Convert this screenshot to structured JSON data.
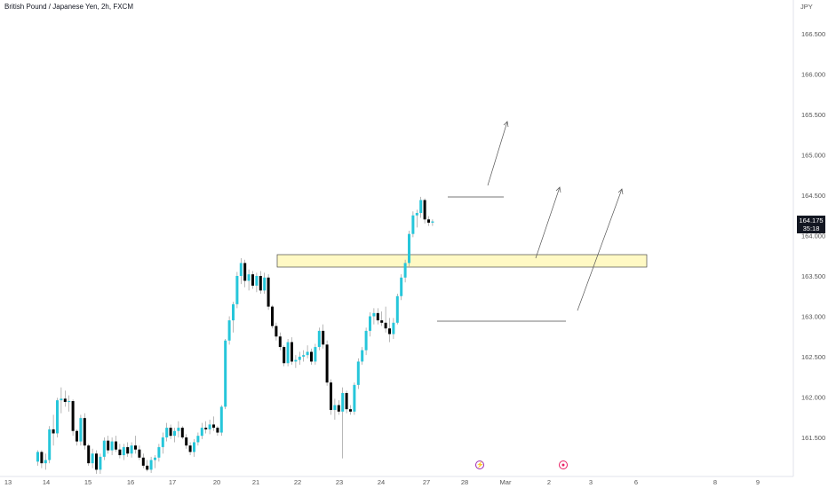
{
  "header": {
    "symbol": "British Pound / Japanese Yen, 2h, FXCM",
    "currency": "JPY"
  },
  "price_tag": {
    "price": "164.175",
    "countdown": "35:18"
  },
  "event_icons": [
    {
      "name": "lightning-icon",
      "glyph": "⚡",
      "color": "#9c27b0"
    },
    {
      "name": "record-icon",
      "glyph": "●",
      "color": "#e91e63"
    }
  ],
  "chart_data": {
    "type": "candlestick",
    "price_axis": {
      "ticks": [
        "166.500",
        "166.000",
        "165.500",
        "165.000",
        "164.500",
        "164.000",
        "163.500",
        "163.000",
        "162.500",
        "162.000",
        "161.500"
      ],
      "range": [
        161.05,
        166.75
      ]
    },
    "time_axis": {
      "labels": [
        "13",
        "14",
        "15",
        "16",
        "17",
        "20",
        "21",
        "22",
        "23",
        "24",
        "27",
        "28",
        "Mar",
        "2",
        "3",
        "6",
        "8",
        "9"
      ]
    },
    "bar_count": 113,
    "first_bar_index": 8,
    "colors": {
      "up": "#26c6da",
      "down": "#000000",
      "wick": "#888888",
      "zone_fill": "#fff9c4",
      "zone_stroke": "#4a4a4a",
      "line": "#4a4a4a",
      "arrow": "#555555"
    },
    "ohlc": [
      [
        161.2,
        161.34,
        161.15,
        161.32
      ],
      [
        161.32,
        161.34,
        161.12,
        161.18
      ],
      [
        161.18,
        161.3,
        161.1,
        161.22
      ],
      [
        161.22,
        161.64,
        161.18,
        161.6
      ],
      [
        161.6,
        161.78,
        161.4,
        161.55
      ],
      [
        161.55,
        161.99,
        161.5,
        161.96
      ],
      [
        161.96,
        162.12,
        161.8,
        161.98
      ],
      [
        161.98,
        162.08,
        161.88,
        161.94
      ],
      [
        161.94,
        162.02,
        161.82,
        161.95
      ],
      [
        161.95,
        161.97,
        161.52,
        161.58
      ],
      [
        161.58,
        161.6,
        161.4,
        161.45
      ],
      [
        161.45,
        161.78,
        161.4,
        161.74
      ],
      [
        161.74,
        161.8,
        161.35,
        161.4
      ],
      [
        161.4,
        161.42,
        161.15,
        161.18
      ],
      [
        161.18,
        161.36,
        161.12,
        161.3
      ],
      [
        161.3,
        161.34,
        161.05,
        161.1
      ],
      [
        161.1,
        161.3,
        161.05,
        161.26
      ],
      [
        161.26,
        161.5,
        161.22,
        161.46
      ],
      [
        161.46,
        161.52,
        161.3,
        161.34
      ],
      [
        161.34,
        161.5,
        161.28,
        161.45
      ],
      [
        161.45,
        161.52,
        161.32,
        161.35
      ],
      [
        161.35,
        161.42,
        161.24,
        161.28
      ],
      [
        161.28,
        161.42,
        161.22,
        161.38
      ],
      [
        161.38,
        161.44,
        161.26,
        161.3
      ],
      [
        161.3,
        161.44,
        161.25,
        161.4
      ],
      [
        161.4,
        161.52,
        161.3,
        161.35
      ],
      [
        161.35,
        161.4,
        161.22,
        161.25
      ],
      [
        161.25,
        161.3,
        161.12,
        161.15
      ],
      [
        161.15,
        161.22,
        161.08,
        161.1
      ],
      [
        161.1,
        161.26,
        161.06,
        161.22
      ],
      [
        161.22,
        161.28,
        161.12,
        161.25
      ],
      [
        161.25,
        161.42,
        161.2,
        161.38
      ],
      [
        161.38,
        161.56,
        161.3,
        161.5
      ],
      [
        161.5,
        161.68,
        161.45,
        161.62
      ],
      [
        161.62,
        161.66,
        161.48,
        161.52
      ],
      [
        161.52,
        161.62,
        161.44,
        161.58
      ],
      [
        161.58,
        161.7,
        161.5,
        161.62
      ],
      [
        161.62,
        161.64,
        161.48,
        161.5
      ],
      [
        161.5,
        161.54,
        161.36,
        161.4
      ],
      [
        161.4,
        161.44,
        161.28,
        161.32
      ],
      [
        161.32,
        161.48,
        161.26,
        161.44
      ],
      [
        161.44,
        161.56,
        161.4,
        161.52
      ],
      [
        161.52,
        161.68,
        161.48,
        161.62
      ],
      [
        161.62,
        161.7,
        161.55,
        161.6
      ],
      [
        161.6,
        161.72,
        161.54,
        161.66
      ],
      [
        161.66,
        161.76,
        161.58,
        161.62
      ],
      [
        161.62,
        161.64,
        161.52,
        161.56
      ],
      [
        161.56,
        161.9,
        161.52,
        161.88
      ],
      [
        161.88,
        162.72,
        161.85,
        162.7
      ],
      [
        162.7,
        163.0,
        162.65,
        162.95
      ],
      [
        162.95,
        163.18,
        162.8,
        163.15
      ],
      [
        163.15,
        163.55,
        163.1,
        163.5
      ],
      [
        163.5,
        163.72,
        163.4,
        163.66
      ],
      [
        163.66,
        163.7,
        163.36,
        163.44
      ],
      [
        163.44,
        163.58,
        163.32,
        163.52
      ],
      [
        163.52,
        163.56,
        163.34,
        163.38
      ],
      [
        163.38,
        163.54,
        163.3,
        163.5
      ],
      [
        163.5,
        163.56,
        163.28,
        163.32
      ],
      [
        163.32,
        163.54,
        163.28,
        163.48
      ],
      [
        163.48,
        163.52,
        163.08,
        163.12
      ],
      [
        163.12,
        163.14,
        162.85,
        162.88
      ],
      [
        162.88,
        162.92,
        162.7,
        162.75
      ],
      [
        162.75,
        162.8,
        162.58,
        162.62
      ],
      [
        162.62,
        162.64,
        162.38,
        162.42
      ],
      [
        162.42,
        162.72,
        162.38,
        162.68
      ],
      [
        162.68,
        162.74,
        162.4,
        162.44
      ],
      [
        162.44,
        162.52,
        162.36,
        162.46
      ],
      [
        162.46,
        162.56,
        162.4,
        162.5
      ],
      [
        162.5,
        162.58,
        162.44,
        162.52
      ],
      [
        162.52,
        162.64,
        162.48,
        162.56
      ],
      [
        162.56,
        162.6,
        162.4,
        162.44
      ],
      [
        162.44,
        162.66,
        162.4,
        162.62
      ],
      [
        162.62,
        162.86,
        162.58,
        162.82
      ],
      [
        162.82,
        162.9,
        162.6,
        162.65
      ],
      [
        162.65,
        162.7,
        162.14,
        162.18
      ],
      [
        162.18,
        162.22,
        161.78,
        161.84
      ],
      [
        161.84,
        161.98,
        161.72,
        161.9
      ],
      [
        161.9,
        161.96,
        161.78,
        161.82
      ],
      [
        161.82,
        162.12,
        161.24,
        162.05
      ],
      [
        162.05,
        162.08,
        161.8,
        161.85
      ],
      [
        161.85,
        161.9,
        161.78,
        161.82
      ],
      [
        161.82,
        162.18,
        161.78,
        162.15
      ],
      [
        162.15,
        162.48,
        162.1,
        162.44
      ],
      [
        162.44,
        162.62,
        162.4,
        162.58
      ],
      [
        162.58,
        162.86,
        162.52,
        162.82
      ],
      [
        162.82,
        163.05,
        162.75,
        163.0
      ],
      [
        163.0,
        163.1,
        162.9,
        163.04
      ],
      [
        163.04,
        163.1,
        162.9,
        162.95
      ],
      [
        162.95,
        163.06,
        162.88,
        162.92
      ],
      [
        162.92,
        163.12,
        162.8,
        162.85
      ],
      [
        162.85,
        162.98,
        162.68,
        162.78
      ],
      [
        162.78,
        162.98,
        162.72,
        162.92
      ],
      [
        162.92,
        163.28,
        162.9,
        163.25
      ],
      [
        163.25,
        163.52,
        163.2,
        163.48
      ],
      [
        163.48,
        163.7,
        163.42,
        163.66
      ],
      [
        163.66,
        164.06,
        163.62,
        164.02
      ],
      [
        164.02,
        164.3,
        163.98,
        164.25
      ],
      [
        164.25,
        164.32,
        164.1,
        164.28
      ],
      [
        164.28,
        164.48,
        164.22,
        164.44
      ],
      [
        164.44,
        164.46,
        164.15,
        164.2
      ],
      [
        164.2,
        164.24,
        164.12,
        164.16
      ],
      [
        164.16,
        164.2,
        164.12,
        164.175
      ]
    ]
  }
}
